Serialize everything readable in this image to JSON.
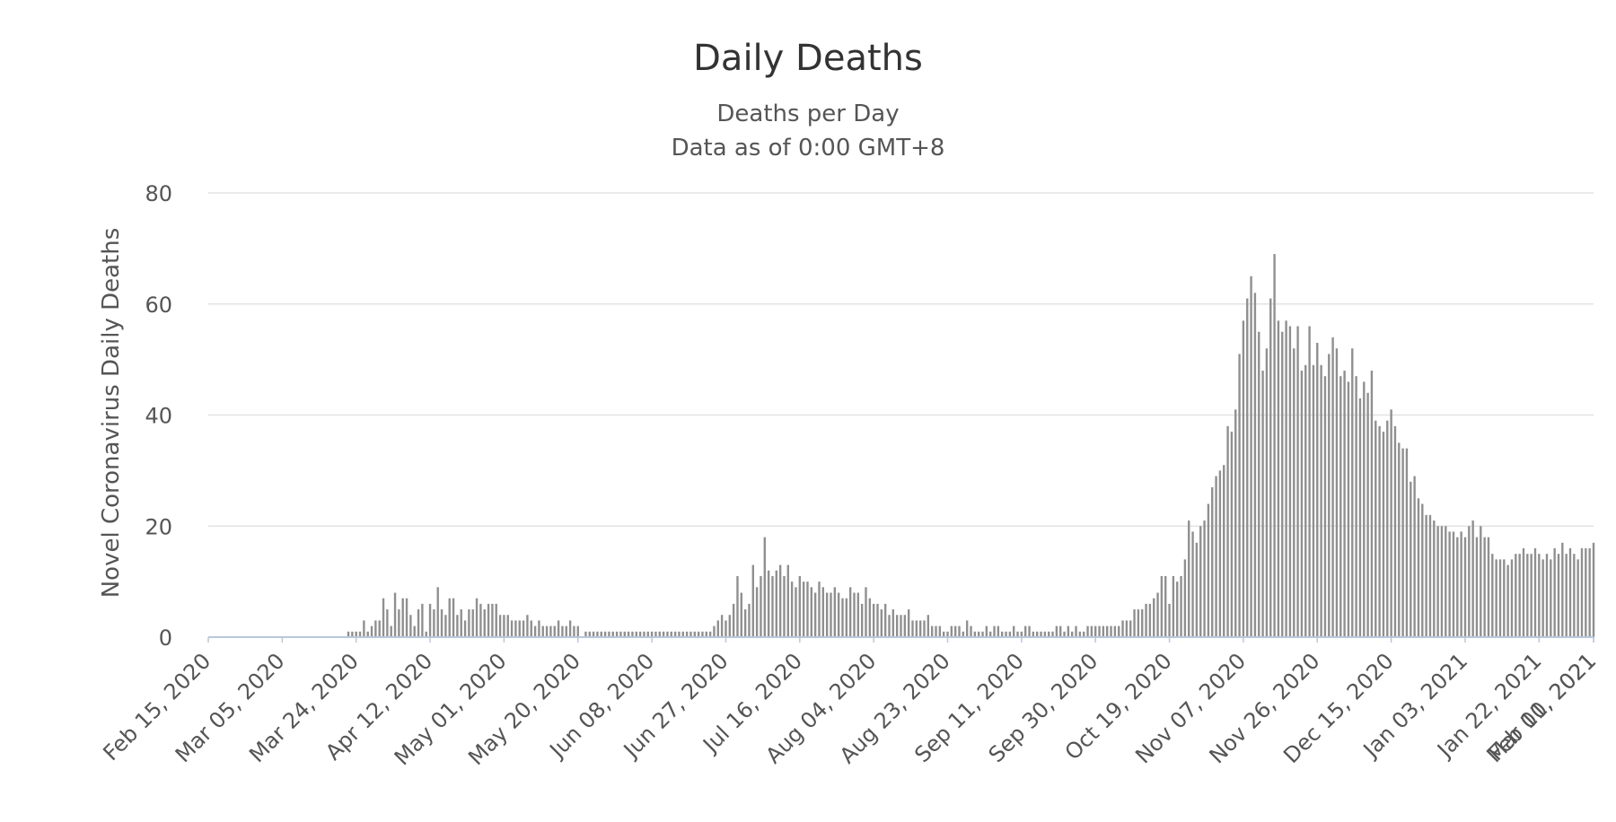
{
  "chart_data": {
    "type": "bar",
    "title": "Daily Deaths",
    "subtitle": [
      "Deaths per Day",
      "Data as of 0:00 GMT+8"
    ],
    "xlabel": "",
    "ylabel": "Novel Coronavirus Daily Deaths",
    "ylim": [
      0,
      80
    ],
    "yticks": [
      0,
      20,
      40,
      60,
      80
    ],
    "x_start": "Feb 15, 2020",
    "x_tick_labels": [
      "Feb 15, 2020",
      "Mar 05, 2020",
      "Mar 24, 2020",
      "Apr 12, 2020",
      "May 01, 2020",
      "May 20, 2020",
      "Jun 08, 2020",
      "Jun 27, 2020",
      "Jul 16, 2020",
      "Aug 04, 2020",
      "Aug 23, 2020",
      "Sep 11, 2020",
      "Sep 30, 2020",
      "Oct 19, 2020",
      "Nov 07, 2020",
      "Nov 26, 2020",
      "Dec 15, 2020",
      "Jan 03, 2021",
      "Jan 22, 2021",
      "Feb 10, 2021",
      "Mar 01, 2021"
    ],
    "tick_interval_days": 19,
    "grid": true,
    "legend": "none",
    "bar_color": "#8f8f8f",
    "values": [
      0,
      0,
      0,
      0,
      0,
      0,
      0,
      0,
      0,
      0,
      0,
      0,
      0,
      0,
      0,
      0,
      0,
      0,
      0,
      0,
      0,
      0,
      0,
      0,
      0,
      0,
      0,
      0,
      0,
      0,
      0,
      0,
      0,
      0,
      0,
      0,
      1,
      1,
      1,
      1,
      3,
      1,
      2,
      3,
      3,
      7,
      5,
      2,
      8,
      5,
      7,
      7,
      4,
      2,
      5,
      6,
      1,
      6,
      5,
      9,
      5,
      4,
      7,
      7,
      4,
      5,
      3,
      5,
      5,
      7,
      6,
      5,
      6,
      6,
      6,
      4,
      4,
      4,
      3,
      3,
      3,
      3,
      4,
      3,
      2,
      3,
      2,
      2,
      2,
      2,
      3,
      2,
      2,
      3,
      2,
      2,
      0,
      1,
      1,
      1,
      1,
      1,
      1,
      1,
      1,
      1,
      1,
      1,
      1,
      1,
      1,
      1,
      1,
      1,
      1,
      1,
      1,
      1,
      1,
      1,
      1,
      1,
      1,
      1,
      1,
      1,
      1,
      1,
      1,
      1,
      2,
      3,
      4,
      3,
      4,
      6,
      11,
      8,
      5,
      6,
      13,
      9,
      11,
      18,
      12,
      11,
      12,
      13,
      11,
      13,
      10,
      9,
      11,
      10,
      10,
      9,
      8,
      10,
      9,
      8,
      8,
      9,
      8,
      7,
      7,
      9,
      8,
      8,
      6,
      9,
      7,
      6,
      6,
      5,
      6,
      4,
      5,
      4,
      4,
      4,
      5,
      3,
      3,
      3,
      3,
      4,
      2,
      2,
      2,
      1,
      1,
      2,
      2,
      2,
      1,
      3,
      2,
      1,
      1,
      1,
      2,
      1,
      2,
      2,
      1,
      1,
      1,
      2,
      1,
      1,
      2,
      2,
      1,
      1,
      1,
      1,
      1,
      1,
      2,
      2,
      1,
      2,
      1,
      2,
      1,
      1,
      2,
      2,
      2,
      2,
      2,
      2,
      2,
      2,
      2,
      3,
      3,
      3,
      5,
      5,
      5,
      6,
      6,
      7,
      8,
      11,
      11,
      6,
      11,
      10,
      11,
      14,
      21,
      19,
      17,
      20,
      21,
      24,
      27,
      29,
      30,
      31,
      38,
      37,
      41,
      51,
      57,
      61,
      65,
      62,
      55,
      48,
      52,
      61,
      69,
      57,
      55,
      57,
      56,
      52,
      56,
      48,
      49,
      56,
      49,
      53,
      49,
      47,
      51,
      54,
      52,
      47,
      48,
      46,
      52,
      47,
      43,
      46,
      44,
      48,
      39,
      38,
      37,
      39,
      41,
      38,
      35,
      34,
      34,
      28,
      29,
      25,
      24,
      22,
      22,
      21,
      20,
      20,
      20,
      19,
      19,
      18,
      19,
      18,
      20,
      21,
      18,
      20,
      18,
      18,
      15,
      14,
      14,
      14,
      13,
      14,
      15,
      15,
      16,
      15,
      15,
      16,
      15,
      14,
      15,
      14,
      16,
      15,
      17,
      15,
      16,
      15,
      14,
      16,
      16,
      16,
      17
    ]
  }
}
